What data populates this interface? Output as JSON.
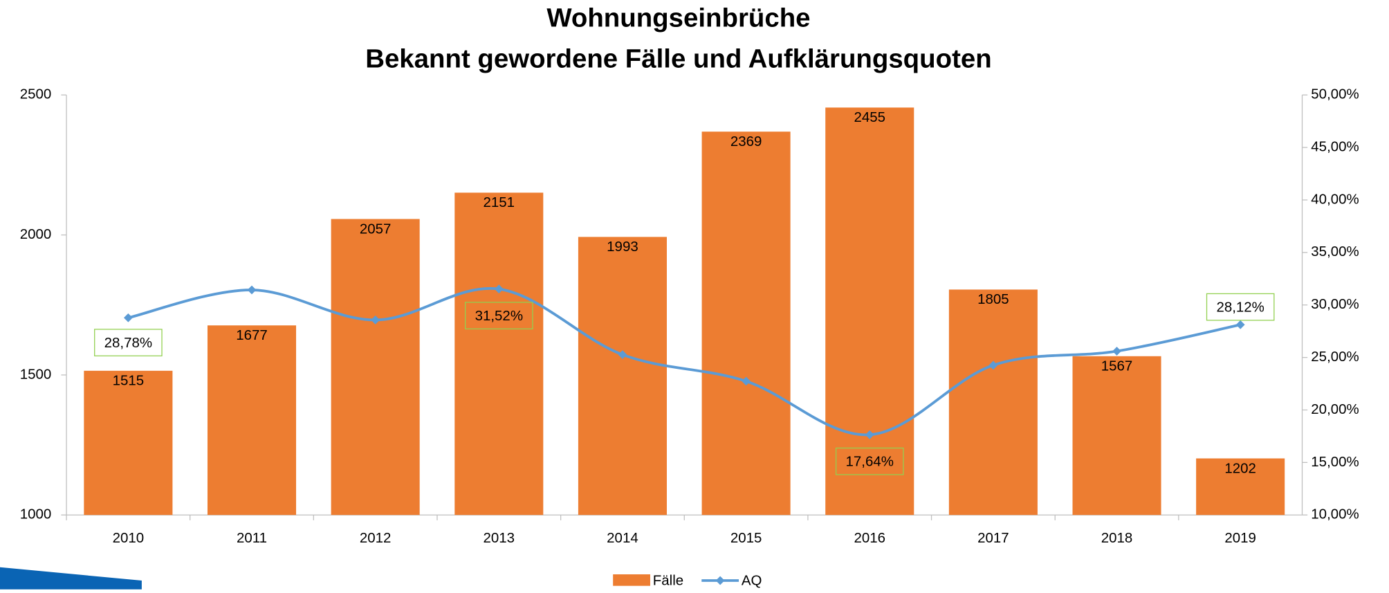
{
  "chart_data": {
    "type": "bar_line",
    "title": "Wohnungseinbrüche",
    "subtitle": "Bekannt gewordene Fälle und Aufklärungsquoten",
    "categories": [
      "2010",
      "2011",
      "2012",
      "2013",
      "2014",
      "2015",
      "2016",
      "2017",
      "2018",
      "2019"
    ],
    "series": [
      {
        "name": "Fälle",
        "type": "bar",
        "color": "#ed7d31",
        "values": [
          1515,
          1677,
          2057,
          2151,
          1993,
          2369,
          2455,
          1805,
          1567,
          1202
        ]
      },
      {
        "name": "AQ",
        "type": "line",
        "axis": "y2",
        "color": "#5b9bd5",
        "values": [
          28.78,
          31.43,
          28.57,
          31.52,
          25.27,
          22.74,
          17.64,
          24.26,
          25.6,
          28.12
        ],
        "value_labels": [
          "28,78%",
          null,
          null,
          "31,52%",
          null,
          null,
          "17,64%",
          null,
          null,
          "28,12%"
        ]
      }
    ],
    "ylim": [
      1000,
      2500
    ],
    "yticks": [
      1000,
      1500,
      2000,
      2500
    ],
    "y2lim": [
      10,
      50
    ],
    "y2ticks": [
      {
        "value": 10,
        "label": "10,00%"
      },
      {
        "value": 15,
        "label": "15,00%"
      },
      {
        "value": 20,
        "label": "20,00%"
      },
      {
        "value": 25,
        "label": "25,00%"
      },
      {
        "value": 30,
        "label": "30,00%"
      },
      {
        "value": 35,
        "label": "35,00%"
      },
      {
        "value": 40,
        "label": "40,00%"
      },
      {
        "value": 45,
        "label": "45,00%"
      },
      {
        "value": 50,
        "label": "50,00%"
      }
    ],
    "legend": "bottom"
  }
}
